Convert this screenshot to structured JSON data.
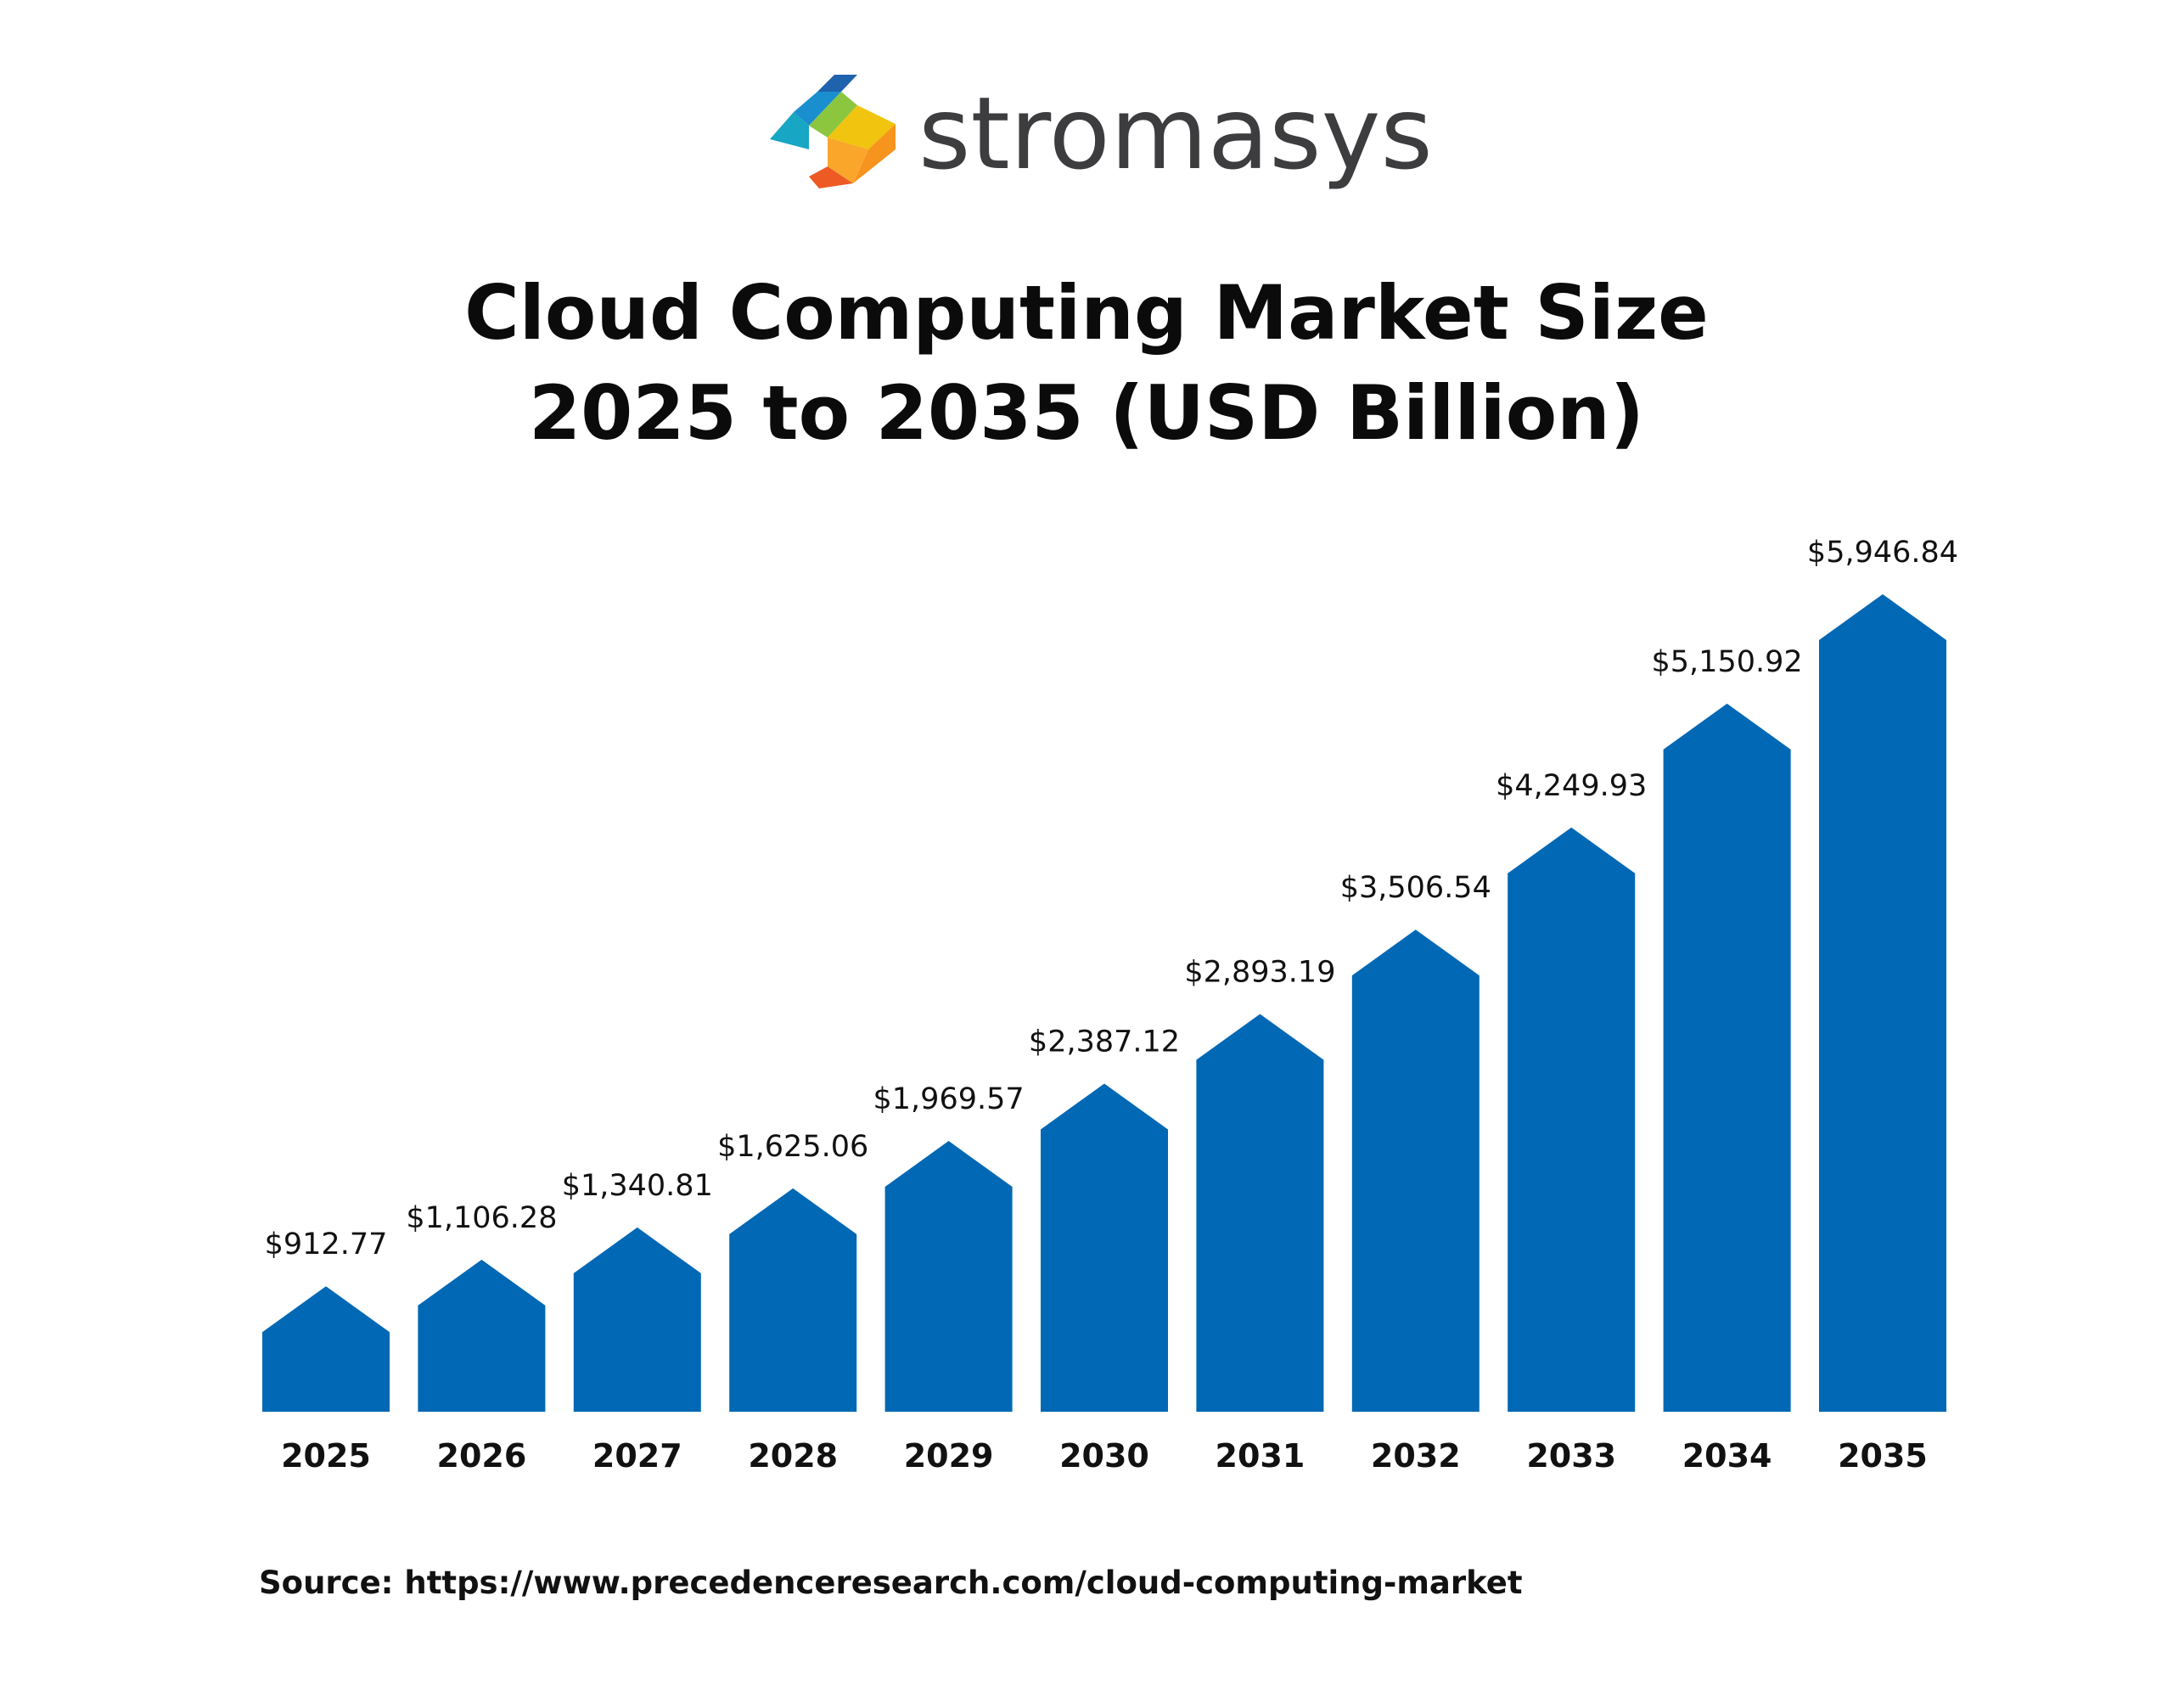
{
  "logo": {
    "text": "stromasys",
    "mark_icon": "stromasys-mark-icon",
    "mark_colors": [
      "#1f62ae",
      "#17a6c4",
      "#8cc63f",
      "#f1c40f",
      "#f7941d",
      "#ee5a24"
    ]
  },
  "title": {
    "line1": "Cloud Computing Market Size",
    "line2": "2025 to 2035 (USD Billion)"
  },
  "source": "Source: https://www.precedenceresearch.com/cloud-computing-market",
  "colors": {
    "bar": "#0068b4",
    "text": "#111111",
    "background": "#ffffff"
  },
  "chart_data": {
    "type": "bar",
    "title": "Cloud Computing Market Size 2025 to 2035 (USD Billion)",
    "categories": [
      "2025",
      "2026",
      "2027",
      "2028",
      "2029",
      "2030",
      "2031",
      "2032",
      "2033",
      "2034",
      "2035"
    ],
    "values": [
      912.77,
      1106.28,
      1340.81,
      1625.06,
      1969.57,
      2387.12,
      2893.19,
      3506.54,
      4249.93,
      5150.92,
      5946.84
    ],
    "value_labels": [
      "$912.77",
      "$1,106.28",
      "$1,340.81",
      "$1,625.06",
      "$1,969.57",
      "$2,387.12",
      "$2,893.19",
      "$3,506.54",
      "$4,249.93",
      "$5,150.92",
      "$5,946.84"
    ],
    "bar_shape": "arrow",
    "xlabel": "",
    "ylabel": "",
    "grid": false,
    "legend": "none"
  }
}
